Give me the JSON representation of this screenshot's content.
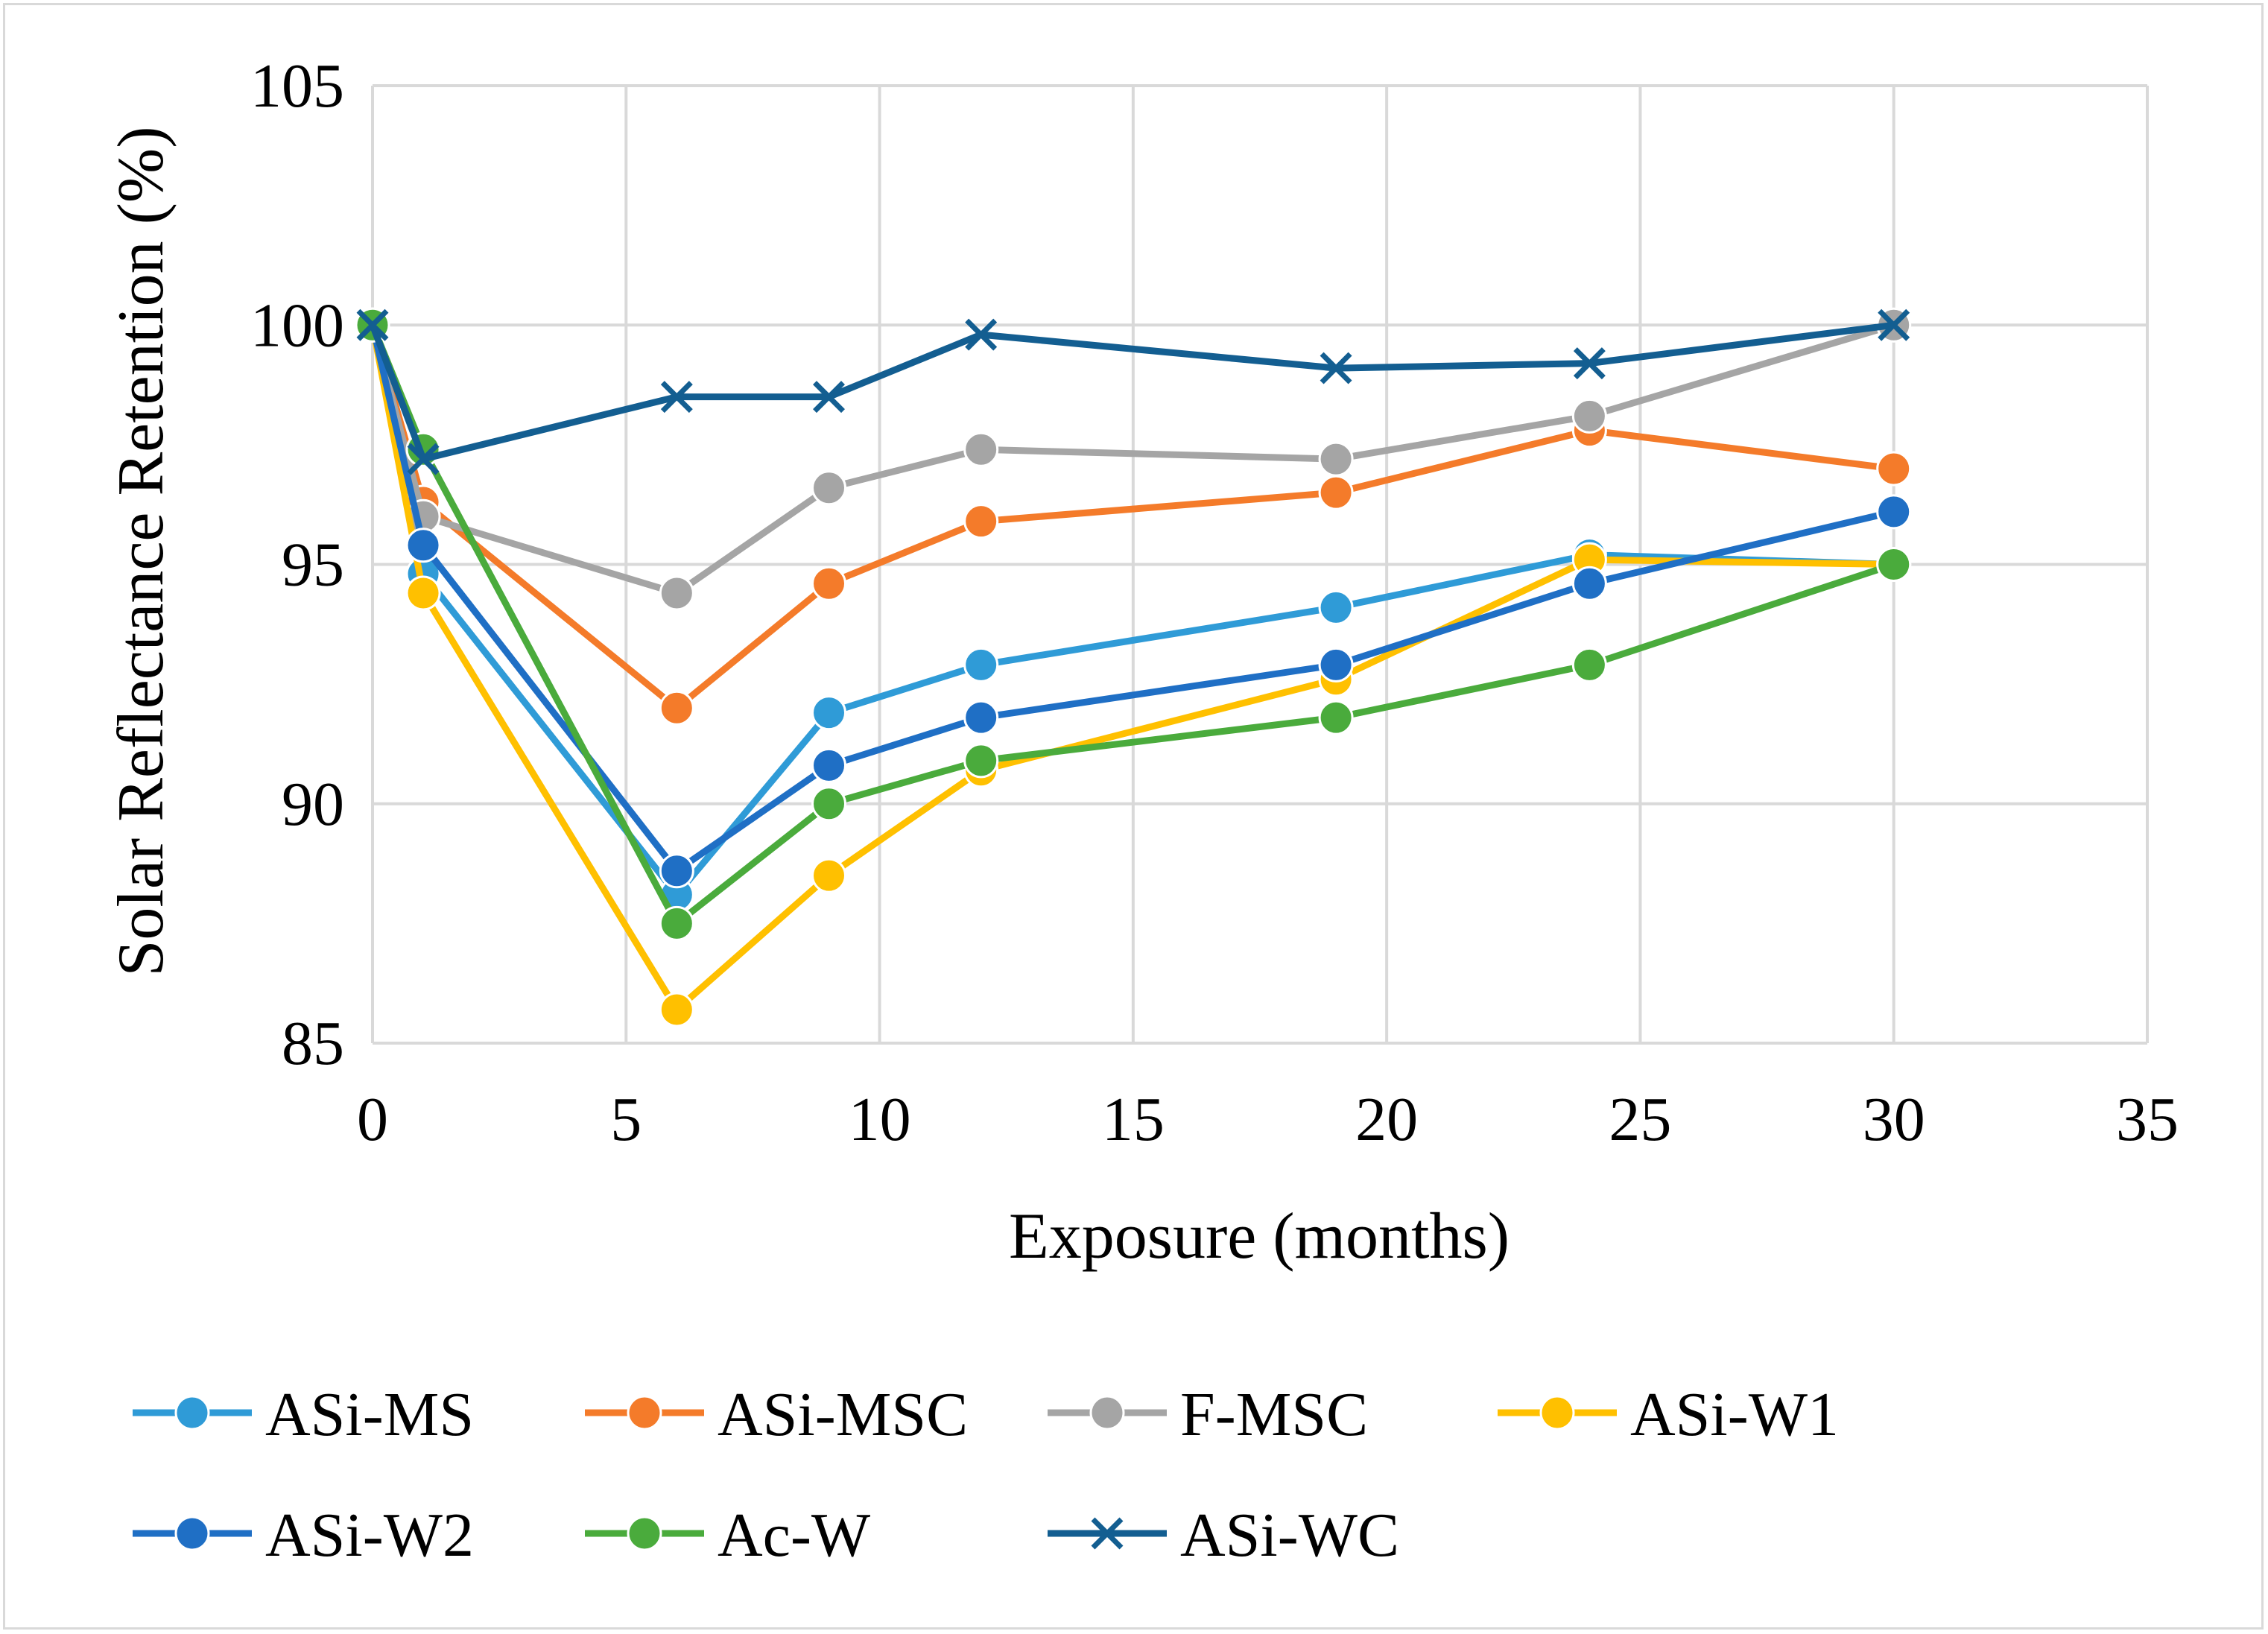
{
  "chart_data": {
    "type": "line",
    "title": "",
    "xlabel": "Exposure (months)",
    "ylabel": "Solar Reflectance Retention (%)",
    "xlim": [
      0,
      35
    ],
    "ylim": [
      85,
      105
    ],
    "xticks": [
      0,
      5,
      10,
      15,
      20,
      25,
      30,
      35
    ],
    "yticks": [
      85,
      90,
      95,
      100,
      105
    ],
    "grid": true,
    "legend_position": "bottom",
    "x": [
      0,
      1,
      6,
      9,
      12,
      19,
      24,
      30
    ],
    "series": [
      {
        "name": "ASi-MS",
        "color": "#2f9bd7",
        "marker": "circle",
        "values": [
          100,
          94.8,
          88.1,
          91.9,
          92.9,
          94.1,
          95.2,
          95.0
        ]
      },
      {
        "name": "ASi-MSC",
        "color": "#f47b2a",
        "marker": "circle",
        "values": [
          100,
          96.3,
          92.0,
          94.6,
          95.9,
          96.5,
          97.8,
          97.0
        ]
      },
      {
        "name": "F-MSC",
        "color": "#a5a5a5",
        "marker": "circle",
        "values": [
          100,
          96.0,
          94.4,
          96.6,
          97.4,
          97.2,
          98.1,
          100.0
        ]
      },
      {
        "name": "ASi-W1",
        "color": "#ffc000",
        "marker": "circle",
        "values": [
          100,
          94.4,
          85.7,
          88.5,
          90.7,
          92.6,
          95.1,
          95.0
        ]
      },
      {
        "name": "ASi-W2",
        "color": "#1f6fc5",
        "marker": "circle",
        "values": [
          100,
          95.4,
          88.6,
          90.8,
          91.8,
          92.9,
          94.6,
          96.1
        ]
      },
      {
        "name": "Ac-W",
        "color": "#4aab3c",
        "marker": "circle",
        "values": [
          100,
          97.4,
          87.5,
          90.0,
          90.9,
          91.8,
          92.9,
          95.0
        ]
      },
      {
        "name": "ASi-WC",
        "color": "#135e91",
        "marker": "x",
        "values": [
          100,
          97.2,
          98.5,
          98.5,
          99.8,
          99.1,
          99.2,
          100.0
        ]
      }
    ]
  }
}
